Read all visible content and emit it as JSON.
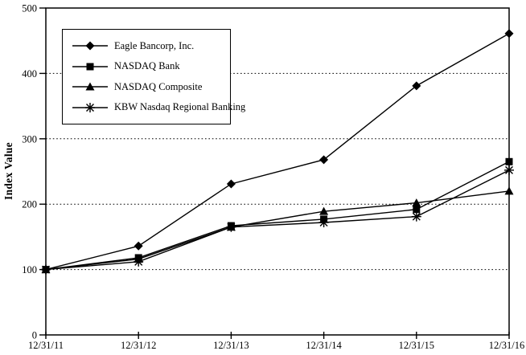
{
  "chart_data": {
    "type": "line",
    "title": "",
    "xlabel": "",
    "ylabel": "Index Value",
    "categories": [
      "12/31/11",
      "12/31/12",
      "12/31/13",
      "12/31/14",
      "12/31/15",
      "12/31/16"
    ],
    "yticks": [
      0,
      100,
      200,
      300,
      400,
      500
    ],
    "ylim": [
      0,
      500
    ],
    "grid": "horizontal dotted lines at 100, 200, 300, 400",
    "legend_position": "inside top-left, boxed",
    "series": [
      {
        "name": "Eagle Bancorp, Inc.",
        "marker": "diamond",
        "values": [
          100,
          136,
          231,
          268,
          381,
          461
        ]
      },
      {
        "name": "NASDAQ Bank",
        "marker": "square",
        "values": [
          100,
          118,
          167,
          177,
          192,
          265
        ]
      },
      {
        "name": "NASDAQ Composite",
        "marker": "triangle",
        "values": [
          100,
          116,
          165,
          189,
          202,
          220
        ]
      },
      {
        "name": "KBW Nasdaq Regional Banking",
        "marker": "asterisk",
        "values": [
          100,
          112,
          165,
          172,
          181,
          252
        ]
      }
    ],
    "colors": {
      "line": "#000000",
      "marker": "#000000",
      "grid": "#000000",
      "background": "#ffffff",
      "text": "#000000"
    }
  }
}
